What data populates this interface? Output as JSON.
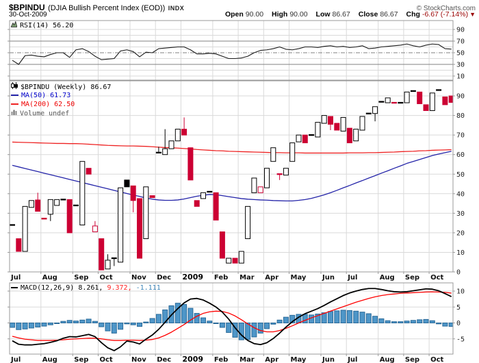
{
  "header": {
    "symbol": "$BPINDU",
    "description": "(DJIA Bullish Percent Index (EOD))",
    "exchange": "INDX",
    "date": "30-Oct-2009",
    "copyright": "© StockCharts.com",
    "ohlc": {
      "open_label": "Open",
      "open": "90.00",
      "high_label": "High",
      "high": "90.00",
      "low_label": "Low",
      "low": "86.67",
      "close_label": "Close",
      "close": "86.67",
      "chg_label": "Chg",
      "chg_value": "-6.67 (-7.14%)",
      "chg_icon": "▼"
    }
  },
  "colors": {
    "candle_red": "#cc0033",
    "candle_black": "#000000",
    "ma50_blue": "#2323a8",
    "ma200_red": "#ee2222",
    "macd_black": "#000000",
    "signal_red": "#ff0000",
    "hist_fill": "#4e96c8",
    "hist_stroke": "#2a6a99",
    "grid": "#d9d9d9",
    "panel_border": "#999999",
    "rsi_line": "#1a1a1a",
    "rsi_bands": "#808080",
    "chg_red": "#990000"
  },
  "chart_data": {
    "type": "candlestick-multi-panel",
    "timeframe": "Weekly, Jul 2008 - Oct 2009",
    "x_months": [
      {
        "label": "Jul",
        "week": 0,
        "bold": false
      },
      {
        "label": "Aug",
        "week": 4,
        "bold": false
      },
      {
        "label": "Sep",
        "week": 9,
        "bold": false
      },
      {
        "label": "Oct",
        "week": 13,
        "bold": false
      },
      {
        "label": "Nov",
        "week": 18,
        "bold": false
      },
      {
        "label": "Dec",
        "week": 22,
        "bold": false
      },
      {
        "label": "2009",
        "week": 26,
        "bold": true
      },
      {
        "label": "Feb",
        "week": 31,
        "bold": false
      },
      {
        "label": "Mar",
        "week": 35,
        "bold": false
      },
      {
        "label": "Apr",
        "week": 39,
        "bold": false
      },
      {
        "label": "May",
        "week": 43,
        "bold": false
      },
      {
        "label": "Jun",
        "week": 48,
        "bold": false
      },
      {
        "label": "Jul",
        "week": 52,
        "bold": false
      },
      {
        "label": "Aug",
        "week": 57,
        "bold": false
      },
      {
        "label": "Sep",
        "week": 61,
        "bold": false
      },
      {
        "label": "Oct",
        "week": 65,
        "bold": false
      }
    ],
    "panels": {
      "rsi": {
        "type": "line",
        "legend": "RSI(14) 56.20",
        "overbought": 70,
        "oversold": 30,
        "midline": 50,
        "axis_ticks": [
          90,
          70,
          50,
          30,
          10
        ],
        "ylim": [
          0,
          100
        ],
        "values": [
          37,
          30,
          45,
          46,
          44,
          43,
          47,
          50,
          50,
          42,
          55,
          57,
          52,
          44,
          38,
          39,
          40,
          53,
          55,
          52,
          43,
          51,
          50,
          57,
          58,
          59,
          60,
          60,
          55,
          48,
          48,
          49,
          48,
          44,
          40,
          40,
          41,
          44,
          50,
          54,
          55,
          57,
          60,
          56,
          55,
          57,
          60,
          60,
          59,
          61,
          62,
          60,
          61,
          59,
          60,
          62,
          57,
          58,
          60,
          61,
          62,
          63,
          65,
          62,
          60,
          63,
          65,
          64,
          57,
          56.2
        ]
      },
      "price": {
        "type": "candlestick",
        "legend_symbol": "$BPINDU (Weekly) 86.67",
        "legend_ma50": "MA(50) 61.73",
        "legend_ma200": "MA(200) 62.50",
        "legend_volume": "Volume undef",
        "axis_ticks": [
          90,
          80,
          70,
          60,
          50,
          40,
          30,
          20,
          10,
          0
        ],
        "ylim": [
          0,
          97
        ],
        "candle_types": {
          "w": "white-up",
          "r": "red-down",
          "b": "black-filled",
          "h": "red-hollow",
          "d": "black-doji",
          "e": "red-doji"
        },
        "candles": [
          [
            "d",
            24,
            24
          ],
          [
            "r",
            17,
            10.5
          ],
          [
            "w",
            10.5,
            33.5
          ],
          [
            "w",
            33,
            36.5
          ],
          [
            "r",
            36.8,
            31,
            40.5
          ],
          [
            "e",
            27.5,
            27
          ],
          [
            "w",
            29.5,
            37,
            null,
            26
          ],
          [
            "w",
            34,
            37
          ],
          [
            "d",
            37,
            37
          ],
          [
            "r",
            37,
            20
          ],
          [
            "d",
            34,
            34
          ],
          [
            "w",
            24,
            56.5
          ],
          [
            "r",
            53,
            50
          ],
          [
            "h",
            20.5,
            23.5,
            26
          ],
          [
            "r",
            17,
            1
          ],
          [
            "w",
            1.5,
            6,
            9
          ],
          [
            "d",
            7,
            7,
            null,
            3
          ],
          [
            "w",
            5,
            43
          ],
          [
            "b",
            47,
            43.5
          ],
          [
            "r",
            44,
            36.5,
            null,
            30.5
          ],
          [
            "r",
            37.5,
            7
          ],
          [
            "w",
            17,
            43.5
          ],
          [
            "e",
            39,
            38
          ],
          [
            "d",
            61,
            61,
            64
          ],
          [
            "w",
            60,
            63,
            73
          ],
          [
            "w",
            63,
            67
          ],
          [
            "w",
            67,
            73
          ],
          [
            "r",
            73,
            70,
            79
          ],
          [
            "r",
            63.5,
            47
          ],
          [
            "r",
            36.5,
            33.5
          ],
          [
            "w",
            37.5,
            40.5
          ],
          [
            "d",
            41,
            41
          ],
          [
            "r",
            40.5,
            26.5
          ],
          [
            "r",
            20.5,
            7
          ],
          [
            "w",
            4.5,
            7
          ],
          [
            "r",
            7,
            4.5
          ],
          [
            "w",
            4.5,
            10.5
          ],
          [
            "w",
            17,
            33.5
          ],
          [
            "w",
            40.5,
            48
          ],
          [
            "h",
            40.5,
            43.5
          ],
          [
            "w",
            43,
            53
          ],
          [
            "w",
            56.5,
            63.5
          ],
          [
            "e",
            50,
            50,
            null,
            47
          ],
          [
            "w",
            49.5,
            53
          ],
          [
            "w",
            56.5,
            66
          ],
          [
            "w",
            66.5,
            70
          ],
          [
            "r",
            70,
            66
          ],
          [
            "d",
            70,
            70
          ],
          [
            "w",
            69,
            76.5
          ],
          [
            "w",
            76,
            80
          ],
          [
            "r",
            79.5,
            75.5,
            null,
            72.5
          ],
          [
            "r",
            76,
            72.5
          ],
          [
            "w",
            72,
            79
          ],
          [
            "r",
            73.5,
            66
          ],
          [
            "w",
            67,
            73
          ],
          [
            "w",
            72.5,
            79.5
          ],
          [
            "d",
            81,
            81
          ],
          [
            "w",
            81,
            84.5,
            null,
            77
          ],
          [
            "d",
            87,
            87
          ],
          [
            "w",
            86.5,
            89
          ],
          [
            "e",
            86.5,
            86.5
          ],
          [
            "d",
            86.5,
            86.5
          ],
          [
            "w",
            86.5,
            92
          ],
          [
            "d",
            92.5,
            92.5
          ],
          [
            "r",
            92,
            86
          ],
          [
            "r",
            85.5,
            82.5
          ],
          [
            "w",
            82.5,
            91.5
          ],
          [
            "d",
            93,
            93
          ],
          [
            "r",
            89.5,
            85.5
          ],
          [
            "r",
            90,
            86.67
          ]
        ],
        "ma50": [
          54.5,
          53.7,
          52.9,
          52.1,
          51.3,
          50.5,
          49.7,
          48.9,
          48.1,
          47.3,
          46.5,
          45.7,
          44.9,
          44.1,
          43.3,
          42.5,
          41.7,
          40.9,
          40.1,
          39.3,
          38.6,
          37.8,
          37.2,
          36.8,
          36.6,
          36.6,
          36.8,
          37.3,
          38,
          38.7,
          39.2,
          39.6,
          39.5,
          39,
          38.5,
          38,
          37.5,
          37.2,
          37,
          36.8,
          36.7,
          36.5,
          36.4,
          36.3,
          36.3,
          36.6,
          37,
          37.6,
          38.5,
          39.4,
          40.5,
          41.7,
          43,
          44.2,
          45.5,
          46.7,
          48,
          49.2,
          50.5,
          51.7,
          53,
          54.2,
          55.5,
          56.5,
          57.5,
          58.5,
          59.5,
          60.3,
          61,
          61.7
        ],
        "ma200": [
          66.4,
          66.3,
          66.2,
          66.1,
          66,
          65.9,
          65.8,
          65.7,
          65.7,
          65.6,
          65.6,
          65.5,
          65.3,
          65.1,
          64.9,
          64.7,
          64.6,
          64.5,
          64.4,
          64.4,
          64.3,
          64.2,
          64,
          63.8,
          63.6,
          63.5,
          63.3,
          63.1,
          62.9,
          62.6,
          62.4,
          62.2,
          62,
          61.9,
          61.7,
          61.6,
          61.5,
          61.4,
          61.3,
          61.2,
          61.1,
          61,
          61,
          60.9,
          60.9,
          60.9,
          60.8,
          60.8,
          60.8,
          60.8,
          60.8,
          60.8,
          60.8,
          60.9,
          60.9,
          60.9,
          61,
          61,
          61.1,
          61.2,
          61.3,
          61.5,
          61.6,
          61.7,
          61.9,
          62,
          62.2,
          62.3,
          62.4,
          62.5
        ]
      },
      "macd": {
        "type": "line+histogram",
        "legend_label": "MACD(12,26,9)",
        "legend_macd": "8.261,",
        "legend_signal": "9.372,",
        "legend_hist": "-1.111",
        "axis_ticks": [
          10,
          5,
          0,
          -5
        ],
        "ylim": [
          -10,
          12.5
        ],
        "histogram": [
          -1.4,
          -2.1,
          -1.9,
          -1.6,
          -1.3,
          -1,
          -0.6,
          -0.2,
          0.5,
          0.8,
          0.6,
          0.9,
          1.2,
          0.5,
          -1.2,
          -2.5,
          -3.2,
          -2,
          -0.3,
          -0.6,
          -1.1,
          0.3,
          1.4,
          2.7,
          4.1,
          5.4,
          6.2,
          5.8,
          4.6,
          3,
          1.6,
          0.6,
          -0.2,
          -1.4,
          -3,
          -4.5,
          -5.3,
          -5.2,
          -4.4,
          -3.2,
          -1.8,
          -0.4,
          0.9,
          1.8,
          2.4,
          2.7,
          2.7,
          2.5,
          2.8,
          3.2,
          3.6,
          3.8,
          4,
          3.9,
          3.7,
          3.4,
          2.9,
          2.1,
          1.3,
          0.7,
          0.4,
          0.4,
          0.6,
          0.8,
          1,
          1.1,
          0.7,
          -0.3,
          -1,
          -1.111
        ],
        "macd_line": [
          -5.6,
          -6.7,
          -6.9,
          -6.9,
          -6.7,
          -6.5,
          -6.1,
          -5.6,
          -4.8,
          -4.3,
          -4.4,
          -4,
          -3.6,
          -4.3,
          -6.2,
          -7.8,
          -8.7,
          -7.5,
          -5.7,
          -6,
          -6.6,
          -5.1,
          -3.8,
          -2,
          0.2,
          2.5,
          4.5,
          6.3,
          7.5,
          7.7,
          7.2,
          6.2,
          5,
          3.4,
          1.2,
          -1.5,
          -3.8,
          -5.5,
          -6.5,
          -6.8,
          -6.2,
          -4.9,
          -3.2,
          -1.3,
          0.4,
          1.8,
          2.9,
          3.7,
          4.5,
          5.5,
          6.6,
          7.6,
          8.6,
          9.4,
          10,
          10.5,
          10.8,
          10.8,
          10.5,
          10.1,
          9.8,
          9.7,
          9.8,
          10.1,
          10.4,
          10.7,
          10.6,
          10.1,
          9.2,
          8.261
        ],
        "signal_line": [
          -4.2,
          -4.7,
          -5.1,
          -5.3,
          -5.5,
          -5.5,
          -5.5,
          -5.4,
          -5.3,
          -5.1,
          -5,
          -4.9,
          -4.8,
          -4.8,
          -5,
          -5.3,
          -5.5,
          -5.5,
          -5.4,
          -5.4,
          -5.5,
          -5.4,
          -5.2,
          -4.7,
          -3.9,
          -2.9,
          -1.7,
          -0.5,
          0.9,
          2.1,
          3,
          3.5,
          3.7,
          3.6,
          3.1,
          2.2,
          1,
          -0.3,
          -1.5,
          -2.4,
          -2.8,
          -2.8,
          -2.4,
          -1.7,
          -0.9,
          0,
          0.8,
          1.6,
          2.3,
          3,
          3.7,
          4.4,
          5.1,
          5.8,
          6.5,
          7.1,
          7.7,
          8.2,
          8.6,
          8.9,
          9.1,
          9.3,
          9.4,
          9.5,
          9.6,
          9.7,
          9.75,
          9.7,
          9.6,
          9.372
        ]
      }
    }
  }
}
